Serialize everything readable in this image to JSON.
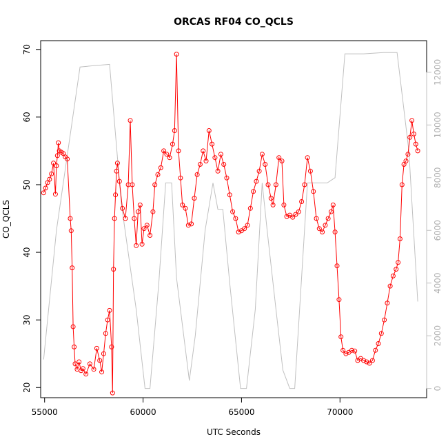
{
  "chart_data": {
    "type": "line",
    "title": "ORCAS RF04 CO_QCLS",
    "xlabel": "UTC Seconds",
    "ylabel": "CO_QCLS",
    "xlim": [
      54800,
      74400
    ],
    "ylim": [
      18.5,
      71.3
    ],
    "y2lim": [
      -350,
      13200
    ],
    "x_ticks": [
      55000,
      60000,
      65000,
      70000
    ],
    "y_ticks": [
      20,
      30,
      40,
      50,
      60,
      70
    ],
    "y2_ticks": [
      0,
      2000,
      4000,
      6000,
      8000,
      10000,
      12000
    ],
    "colors": {
      "co": "#ff0000",
      "altitude": "#c0c0c0",
      "axes": "#000000",
      "y2_axis": "#c0c0c0"
    },
    "series": [
      {
        "points": [
          [
            54950,
            48.8
          ],
          [
            55050,
            49.5
          ],
          [
            55150,
            50.3
          ],
          [
            55250,
            50.8
          ],
          [
            55350,
            51.6
          ],
          [
            55450,
            53.2
          ],
          [
            55550,
            48.6
          ],
          [
            55600,
            52.8
          ],
          [
            55650,
            54.3
          ],
          [
            55700,
            56.2
          ],
          [
            55750,
            55.0
          ],
          [
            55850,
            54.8
          ],
          [
            55950,
            54.6
          ],
          [
            56050,
            54.1
          ],
          [
            56150,
            53.8
          ],
          [
            56300,
            45.0
          ],
          [
            56350,
            43.2
          ],
          [
            56400,
            37.7
          ],
          [
            56450,
            29.0
          ],
          [
            56500,
            26.0
          ],
          [
            56550,
            23.5
          ],
          [
            56650,
            22.7
          ],
          [
            56750,
            23.8
          ],
          [
            56850,
            22.5
          ],
          [
            56950,
            22.8
          ],
          [
            57100,
            22.0
          ],
          [
            57300,
            23.5
          ],
          [
            57500,
            22.7
          ],
          [
            57650,
            25.8
          ],
          [
            57800,
            24.0
          ],
          [
            57900,
            22.3
          ],
          [
            58000,
            25.0
          ],
          [
            58100,
            28.0
          ],
          [
            58200,
            30.0
          ],
          [
            58300,
            31.4
          ],
          [
            58400,
            26.0
          ],
          [
            58450,
            19.2
          ],
          [
            58500,
            37.5
          ],
          [
            58550,
            45.0
          ],
          [
            58600,
            48.5
          ],
          [
            58650,
            52.0
          ],
          [
            58700,
            53.2
          ],
          [
            58800,
            50.5
          ],
          [
            58950,
            46.5
          ],
          [
            59100,
            45.0
          ],
          [
            59250,
            50.0
          ],
          [
            59350,
            59.5
          ],
          [
            59450,
            50.0
          ],
          [
            59550,
            45.0
          ],
          [
            59650,
            41.0
          ],
          [
            59750,
            46.0
          ],
          [
            59850,
            47.0
          ],
          [
            59950,
            41.2
          ],
          [
            60050,
            43.5
          ],
          [
            60200,
            44.0
          ],
          [
            60350,
            42.5
          ],
          [
            60500,
            46.0
          ],
          [
            60600,
            50.0
          ],
          [
            60750,
            51.5
          ],
          [
            60900,
            52.5
          ],
          [
            61050,
            55.0
          ],
          [
            61200,
            54.5
          ],
          [
            61350,
            54.0
          ],
          [
            61500,
            56.0
          ],
          [
            61600,
            58.0
          ],
          [
            61700,
            69.3
          ],
          [
            61800,
            55.0
          ],
          [
            61900,
            51.0
          ],
          [
            62000,
            47.0
          ],
          [
            62150,
            46.5
          ],
          [
            62300,
            44.0
          ],
          [
            62450,
            44.2
          ],
          [
            62600,
            48.0
          ],
          [
            62750,
            51.5
          ],
          [
            62900,
            53.0
          ],
          [
            63050,
            55.0
          ],
          [
            63200,
            53.5
          ],
          [
            63350,
            58.0
          ],
          [
            63500,
            56.0
          ],
          [
            63650,
            54.0
          ],
          [
            63800,
            52.0
          ],
          [
            63950,
            54.5
          ],
          [
            64100,
            53.0
          ],
          [
            64250,
            51.0
          ],
          [
            64400,
            48.5
          ],
          [
            64550,
            46.0
          ],
          [
            64700,
            45.0
          ],
          [
            64850,
            43.0
          ],
          [
            65000,
            43.2
          ],
          [
            65150,
            43.5
          ],
          [
            65300,
            44.0
          ],
          [
            65450,
            46.5
          ],
          [
            65600,
            49.0
          ],
          [
            65750,
            50.5
          ],
          [
            65900,
            52.0
          ],
          [
            66050,
            54.5
          ],
          [
            66200,
            53.0
          ],
          [
            66350,
            50.0
          ],
          [
            66500,
            48.0
          ],
          [
            66600,
            47.0
          ],
          [
            66750,
            50.0
          ],
          [
            66900,
            54.0
          ],
          [
            67050,
            53.5
          ],
          [
            67150,
            47.0
          ],
          [
            67300,
            45.3
          ],
          [
            67450,
            45.5
          ],
          [
            67600,
            45.2
          ],
          [
            67750,
            45.6
          ],
          [
            67900,
            46.0
          ],
          [
            68050,
            47.5
          ],
          [
            68200,
            50.0
          ],
          [
            68350,
            54.0
          ],
          [
            68500,
            52.0
          ],
          [
            68650,
            49.0
          ],
          [
            68800,
            45.0
          ],
          [
            68950,
            43.5
          ],
          [
            69100,
            43.0
          ],
          [
            69250,
            44.0
          ],
          [
            69400,
            45.0
          ],
          [
            69550,
            46.0
          ],
          [
            69650,
            47.0
          ],
          [
            69750,
            43.0
          ],
          [
            69850,
            38.0
          ],
          [
            69950,
            33.0
          ],
          [
            70050,
            27.5
          ],
          [
            70150,
            25.5
          ],
          [
            70300,
            25.0
          ],
          [
            70450,
            25.2
          ],
          [
            70600,
            25.5
          ],
          [
            70750,
            25.4
          ],
          [
            70900,
            24.0
          ],
          [
            71050,
            24.3
          ],
          [
            71200,
            24.0
          ],
          [
            71350,
            23.8
          ],
          [
            71500,
            23.6
          ],
          [
            71650,
            24.0
          ],
          [
            71800,
            25.5
          ],
          [
            71950,
            26.5
          ],
          [
            72100,
            28.0
          ],
          [
            72250,
            30.0
          ],
          [
            72400,
            32.5
          ],
          [
            72550,
            35.0
          ],
          [
            72700,
            36.5
          ],
          [
            72850,
            37.5
          ],
          [
            72950,
            38.5
          ],
          [
            73050,
            42.0
          ],
          [
            73150,
            50.0
          ],
          [
            73250,
            53.0
          ],
          [
            73350,
            53.5
          ],
          [
            73450,
            54.5
          ],
          [
            73550,
            57.0
          ],
          [
            73650,
            59.5
          ],
          [
            73750,
            57.5
          ],
          [
            73850,
            56.0
          ],
          [
            73950,
            55.0
          ]
        ]
      },
      {
        "axis": "right",
        "points": [
          [
            54950,
            1100
          ],
          [
            55600,
            6000
          ],
          [
            56800,
            12200
          ],
          [
            57500,
            12250
          ],
          [
            58300,
            12300
          ],
          [
            58900,
            7000
          ],
          [
            59650,
            3000
          ],
          [
            60100,
            0
          ],
          [
            60350,
            0
          ],
          [
            60800,
            4000
          ],
          [
            61150,
            7800
          ],
          [
            61450,
            7800
          ],
          [
            61700,
            4200
          ],
          [
            62350,
            300
          ],
          [
            62650,
            2000
          ],
          [
            63150,
            6000
          ],
          [
            63550,
            7800
          ],
          [
            63800,
            6800
          ],
          [
            64050,
            6800
          ],
          [
            64400,
            4000
          ],
          [
            64950,
            0
          ],
          [
            65250,
            0
          ],
          [
            65700,
            3000
          ],
          [
            66050,
            7800
          ],
          [
            66300,
            6000
          ],
          [
            66750,
            3000
          ],
          [
            67100,
            700
          ],
          [
            67450,
            0
          ],
          [
            67700,
            0
          ],
          [
            67950,
            3000
          ],
          [
            68350,
            7800
          ],
          [
            68800,
            7800
          ],
          [
            69350,
            7800
          ],
          [
            69750,
            8000
          ],
          [
            70250,
            12700
          ],
          [
            71200,
            12700
          ],
          [
            72200,
            12750
          ],
          [
            72900,
            12750
          ],
          [
            73500,
            9000
          ],
          [
            73950,
            3300
          ]
        ]
      }
    ]
  }
}
